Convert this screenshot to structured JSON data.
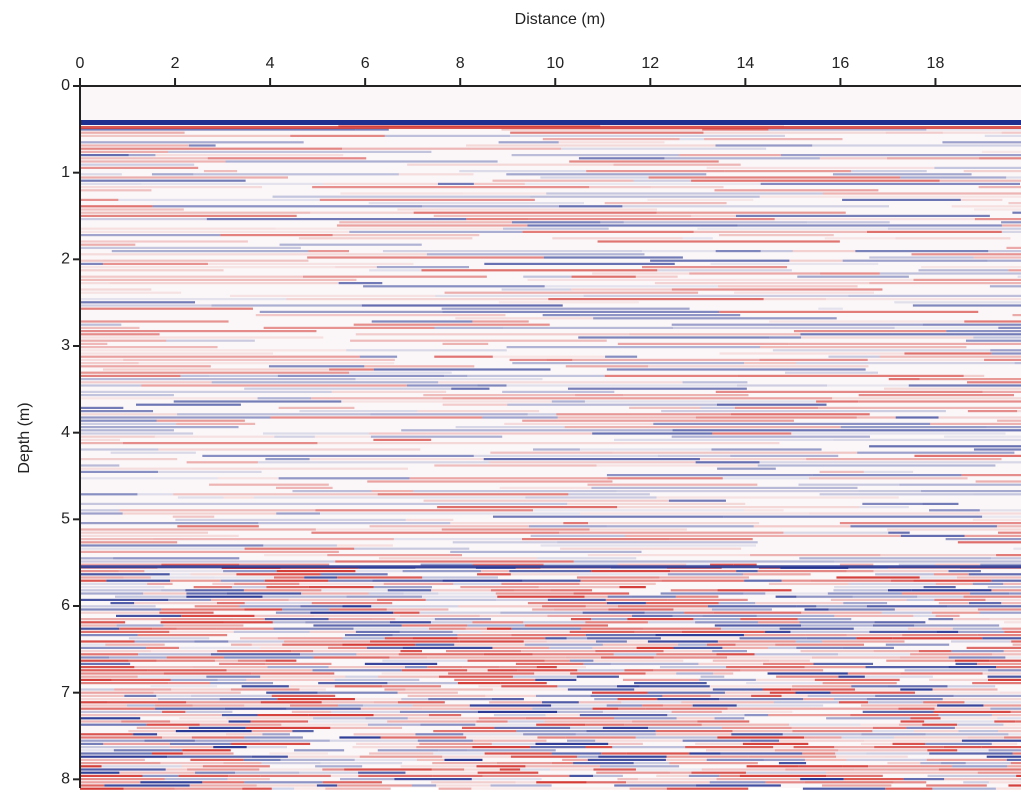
{
  "chart_data": {
    "type": "radargram",
    "x_label": "Distance (m)",
    "y_label": "Depth (m)",
    "xlim": [
      0,
      19.8
    ],
    "xticks": [
      0,
      2,
      4,
      6,
      8,
      10,
      12,
      14,
      16,
      18
    ],
    "ylim": [
      0,
      8.1
    ],
    "yticks": [
      0,
      1,
      2,
      3,
      4,
      5,
      6,
      7,
      8
    ],
    "y_inverted": true,
    "x_axis_position": "top",
    "colors": [
      "#d2302b",
      "#1f2f8f"
    ]
  }
}
